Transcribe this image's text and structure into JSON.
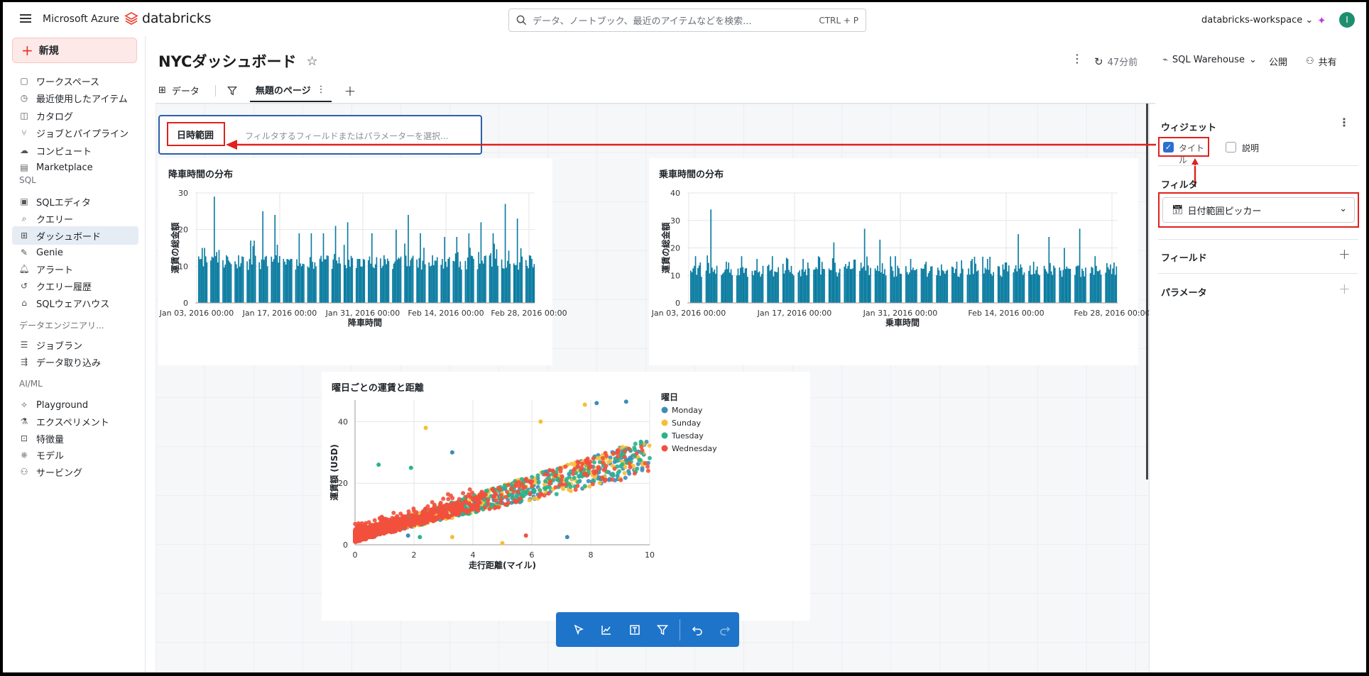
{
  "topbar": {
    "brand_azure": "Microsoft Azure",
    "brand_databricks": "databricks",
    "search_placeholder": "データ、ノートブック、最近のアイテムなどを検索...",
    "search_shortcut": "CTRL + P",
    "workspace": "databricks-workspace",
    "avatar_initial": "I"
  },
  "sidebar": {
    "new_label": "新規",
    "items_top": [
      {
        "label": "ワークスペース",
        "icon": "folder-icon"
      },
      {
        "label": "最近使用したアイテム",
        "icon": "clock-icon"
      },
      {
        "label": "カタログ",
        "icon": "catalog-icon"
      },
      {
        "label": "ジョブとパイプライン",
        "icon": "workflow-icon"
      },
      {
        "label": "コンピュート",
        "icon": "cloud-icon"
      },
      {
        "label": "Marketplace",
        "icon": "store-icon"
      }
    ],
    "section_sql": "SQL",
    "items_sql": [
      {
        "label": "SQLエディタ",
        "icon": "sql-editor-icon"
      },
      {
        "label": "クエリー",
        "icon": "query-icon"
      },
      {
        "label": "ダッシュボード",
        "icon": "dashboard-icon",
        "active": true
      },
      {
        "label": "Genie",
        "icon": "genie-icon"
      },
      {
        "label": "アラート",
        "icon": "bell-icon"
      },
      {
        "label": "クエリー履歴",
        "icon": "history-icon"
      },
      {
        "label": "SQLウェアハウス",
        "icon": "warehouse-icon"
      }
    ],
    "section_de": "データエンジニアリ...",
    "items_de": [
      {
        "label": "ジョブラン",
        "icon": "job-runs-icon"
      },
      {
        "label": "データ取り込み",
        "icon": "ingest-icon"
      }
    ],
    "section_ml": "AI/ML",
    "items_ml": [
      {
        "label": "Playground",
        "icon": "playground-icon"
      },
      {
        "label": "エクスペリメント",
        "icon": "experiment-icon"
      },
      {
        "label": "特徴量",
        "icon": "feature-icon"
      },
      {
        "label": "モデル",
        "icon": "model-icon"
      },
      {
        "label": "サービング",
        "icon": "serving-icon"
      }
    ]
  },
  "header": {
    "title": "NYCダッシュボード",
    "refresh_time": "47分前",
    "warehouse": "SQL Warehouse",
    "publish": "公開",
    "share": "共有",
    "tabs": [
      "データ",
      "無題のページ"
    ]
  },
  "filter_widget": {
    "title": "日時範囲",
    "placeholder": "フィルタするフィールドまたはパラメーターを選択..."
  },
  "right_panel": {
    "widget_heading": "ウィジェット",
    "title_checkbox": "タイトル",
    "title_checked": true,
    "description_checkbox": "説明",
    "description_checked": false,
    "filter_heading": "フィルタ",
    "filter_type": "日付範囲ピッカー",
    "fields_heading": "フィールド",
    "parameters_heading": "パラメータ"
  },
  "accent_color": "#0b7ca0",
  "annotation_color": "#e0211d",
  "chart_data": [
    {
      "type": "bar",
      "title": "降車時間の分布",
      "xlabel": "降車時間",
      "ylabel": "運賃の総金額",
      "x_ticks": [
        "Jan 03, 2016 00:00",
        "Jan 17, 2016 00:00",
        "Jan 31, 2016 00:00",
        "Feb 14, 2016 00:00",
        "Feb 28, 2016 00:00"
      ],
      "y_ticks": [
        0,
        10,
        20,
        30
      ],
      "ylim": [
        0,
        30
      ],
      "color": "#0b7ca0",
      "day_peaks": [
        15,
        29,
        13,
        13,
        17,
        25,
        24,
        12,
        19,
        19,
        19,
        21,
        22,
        12,
        19,
        13,
        20,
        24,
        19,
        13,
        18,
        18,
        19,
        22,
        19,
        27,
        23,
        13
      ]
    },
    {
      "type": "bar",
      "title": "乗車時間の分布",
      "xlabel": "乗車時間",
      "ylabel": "運賃の総金額",
      "x_ticks": [
        "Jan 03, 2016 00:00",
        "Jan 17, 2016 00:00",
        "Jan 31, 2016 00:00",
        "Feb 14, 2016 00:00",
        "Feb 28, 2016 00:00"
      ],
      "y_ticks": [
        0,
        10,
        20,
        30,
        40
      ],
      "ylim": [
        0,
        40
      ],
      "color": "#0b7ca0",
      "day_peaks": [
        17,
        34,
        15,
        17,
        16,
        17,
        16,
        16,
        17,
        22,
        15,
        27,
        23,
        17,
        16,
        15,
        14,
        15,
        16,
        16,
        14,
        25,
        15,
        24,
        20,
        27,
        17,
        14
      ]
    },
    {
      "type": "scatter",
      "title": "曜日ごとの運賃と距離",
      "xlabel": "走行距離(マイル)",
      "ylabel": "運賃額 (USD)",
      "xlim": [
        0,
        10
      ],
      "ylim": [
        0,
        47
      ],
      "x_ticks": [
        0,
        2,
        4,
        6,
        8,
        10
      ],
      "y_ticks": [
        0,
        20,
        40
      ],
      "legend_title": "曜日",
      "legend_position": "right",
      "series": [
        {
          "name": "Monday",
          "color": "#3e8db5"
        },
        {
          "name": "Sunday",
          "color": "#f7be34"
        },
        {
          "name": "Tuesday",
          "color": "#2ab38a"
        },
        {
          "name": "Wednesday",
          "color": "#f2503c"
        }
      ],
      "outliers": [
        {
          "x": 8.2,
          "y": 46,
          "s": 0
        },
        {
          "x": 9.2,
          "y": 46.5,
          "s": 0
        },
        {
          "x": 7.8,
          "y": 45.5,
          "s": 1
        },
        {
          "x": 6.3,
          "y": 40,
          "s": 1
        },
        {
          "x": 2.4,
          "y": 38,
          "s": 1
        },
        {
          "x": 3.3,
          "y": 30,
          "s": 0
        },
        {
          "x": 0.8,
          "y": 26,
          "s": 2
        },
        {
          "x": 1.9,
          "y": 25,
          "s": 2
        },
        {
          "x": 7.2,
          "y": 2.5,
          "s": 0
        },
        {
          "x": 5.0,
          "y": 0.5,
          "s": 1
        },
        {
          "x": 3.3,
          "y": 2.5,
          "s": 1
        },
        {
          "x": 1.8,
          "y": 3.0,
          "s": 0
        },
        {
          "x": 2.2,
          "y": 2.5,
          "s": 2
        },
        {
          "x": 5.8,
          "y": 3,
          "s": 3
        }
      ]
    }
  ]
}
